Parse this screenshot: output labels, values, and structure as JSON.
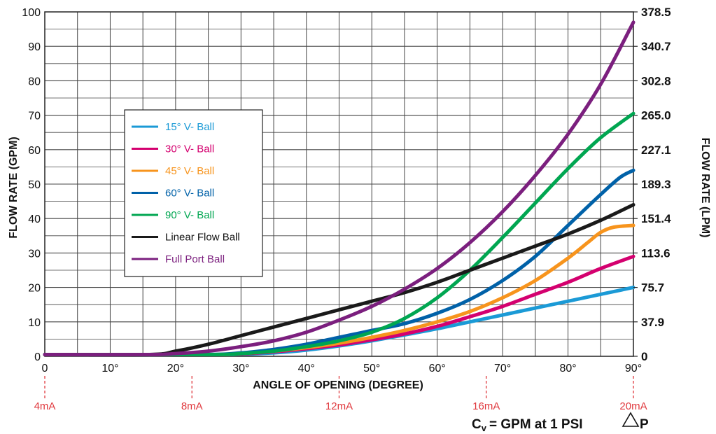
{
  "chart_data": {
    "type": "line",
    "xlabel": "ANGLE OF OPENING (DEGREE)",
    "ylabel": "FLOW RATE (GPM)",
    "y2label": "FLOW RATE (LPM)",
    "xlim": [
      0,
      90
    ],
    "ylim": [
      0,
      100
    ],
    "x_ticks": [
      "0",
      "10°",
      "20°",
      "30°",
      "40°",
      "50°",
      "60°",
      "70°",
      "80°",
      "90°"
    ],
    "y_ticks": [
      "0",
      "10",
      "20",
      "30",
      "40",
      "50",
      "60",
      "70",
      "80",
      "90",
      "100"
    ],
    "y2_ticks": [
      {
        "value": 0,
        "label": "0"
      },
      {
        "value": 10,
        "label": "37.9"
      },
      {
        "value": 20,
        "label": "75.7"
      },
      {
        "value": 30,
        "label": "113.6"
      },
      {
        "value": 40,
        "label": "151.4"
      },
      {
        "value": 50,
        "label": "189.3"
      },
      {
        "value": 60,
        "label": "227.1"
      },
      {
        "value": 70,
        "label": "265.0"
      },
      {
        "value": 80,
        "label": "302.8"
      },
      {
        "value": 90,
        "label": "340.7"
      },
      {
        "value": 100,
        "label": "378.5"
      }
    ],
    "current_markers": [
      {
        "angle": 0,
        "label": "4mA"
      },
      {
        "angle": 22.5,
        "label": "8mA"
      },
      {
        "angle": 45,
        "label": "12mA"
      },
      {
        "angle": 67.5,
        "label": "16mA"
      },
      {
        "angle": 90,
        "label": "20mA"
      }
    ],
    "grid": true,
    "legend_position": "upper-left",
    "series": [
      {
        "name": "15° V- Ball",
        "color": "#1b9ad6",
        "x": [
          0,
          25,
          30,
          35,
          40,
          45,
          50,
          55,
          60,
          65,
          70,
          75,
          80,
          85,
          90
        ],
        "y": [
          0.5,
          0.5,
          0.6,
          1.0,
          1.8,
          3.0,
          4.5,
          6.2,
          8.0,
          10.0,
          12.0,
          14.0,
          16.0,
          18.0,
          20.0
        ]
      },
      {
        "name": "30° V- Ball",
        "color": "#d4006f",
        "x": [
          0,
          24,
          30,
          35,
          40,
          45,
          50,
          55,
          60,
          65,
          70,
          75,
          80,
          85,
          90
        ],
        "y": [
          0.5,
          0.5,
          0.7,
          1.3,
          2.2,
          3.3,
          4.8,
          6.5,
          8.7,
          11.5,
          14.5,
          18.0,
          21.5,
          25.5,
          29.0
        ]
      },
      {
        "name": "45° V- Ball",
        "color": "#f7941d",
        "x": [
          0,
          25,
          30,
          35,
          40,
          45,
          50,
          55,
          60,
          65,
          70,
          75,
          80,
          83,
          85,
          87,
          90
        ],
        "y": [
          0.5,
          0.5,
          0.8,
          1.5,
          2.5,
          3.8,
          5.5,
          7.5,
          10.0,
          13.0,
          17.0,
          22.0,
          28.5,
          33.0,
          36.0,
          37.5,
          38.0
        ]
      },
      {
        "name": "60° V- Ball",
        "color": "#0061a8",
        "x": [
          0,
          24,
          30,
          35,
          40,
          45,
          50,
          55,
          60,
          65,
          70,
          75,
          80,
          85,
          88,
          90
        ],
        "y": [
          0.5,
          0.5,
          1.0,
          2.0,
          3.5,
          5.5,
          7.5,
          9.5,
          12.5,
          16.5,
          22.0,
          29.0,
          38.0,
          47.0,
          52.0,
          54.0
        ]
      },
      {
        "name": "90° V- Ball",
        "color": "#00a651",
        "x": [
          0,
          25,
          30,
          35,
          40,
          45,
          50,
          55,
          60,
          65,
          70,
          75,
          80,
          85,
          90
        ],
        "y": [
          0.5,
          0.5,
          0.8,
          1.5,
          2.8,
          4.5,
          7.0,
          11.0,
          17.0,
          25.0,
          34.5,
          44.5,
          54.5,
          63.5,
          70.5
        ]
      },
      {
        "name": "Linear Flow Ball",
        "color": "#1a1a1a",
        "x": [
          0,
          16,
          20,
          25,
          30,
          35,
          40,
          45,
          50,
          55,
          60,
          65,
          70,
          75,
          80,
          85,
          90
        ],
        "y": [
          0.5,
          0.5,
          1.5,
          3.5,
          6.0,
          8.5,
          11.0,
          13.5,
          16.0,
          18.5,
          21.5,
          25.0,
          28.5,
          32.0,
          35.5,
          39.5,
          44.0
        ]
      },
      {
        "name": "Full Port Ball",
        "color": "#7b1f7e",
        "x": [
          0,
          16,
          20,
          25,
          30,
          35,
          40,
          45,
          50,
          55,
          60,
          65,
          70,
          75,
          80,
          85,
          90
        ],
        "y": [
          0.5,
          0.5,
          0.8,
          1.5,
          2.8,
          4.5,
          7.0,
          10.5,
          14.5,
          19.5,
          25.5,
          33.0,
          42.0,
          52.5,
          64.5,
          79.0,
          97.0
        ]
      }
    ],
    "annotation": "= GPM at 1 PSI",
    "annotation_symbol": "C",
    "annotation_subscript": "v",
    "annotation_suffix": "P"
  }
}
